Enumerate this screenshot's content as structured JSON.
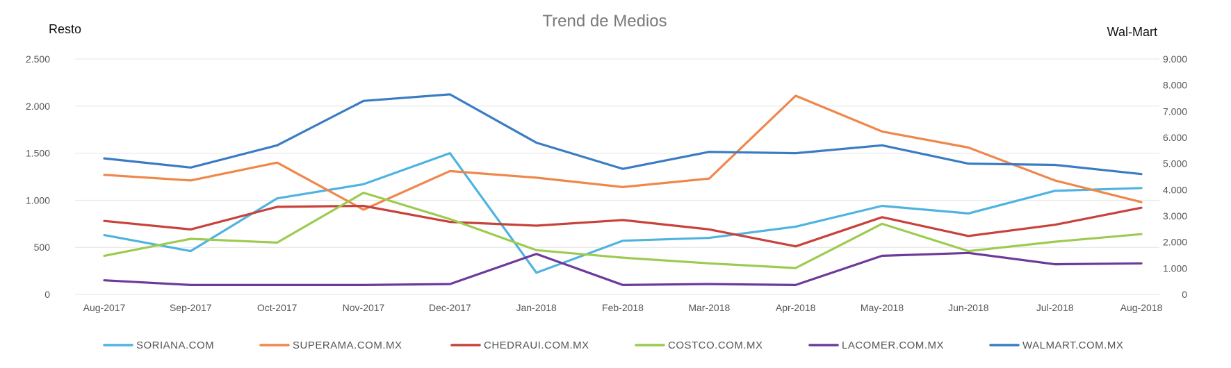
{
  "chart_data": {
    "type": "line",
    "title": "Trend de Medios",
    "y_left_label": "Resto",
    "y_right_label": "Wal-Mart",
    "categories": [
      "Aug-2017",
      "Sep-2017",
      "Oct-2017",
      "Nov-2017",
      "Dec-2017",
      "Jan-2018",
      "Feb-2018",
      "Mar-2018",
      "Apr-2018",
      "May-2018",
      "Jun-2018",
      "Jul-2018",
      "Aug-2018"
    ],
    "y_left": {
      "min": 0,
      "max": 2500,
      "ticks": [
        0,
        500,
        1000,
        1500,
        2000,
        2500
      ],
      "tick_labels": [
        "0",
        "500",
        "1.000",
        "1.500",
        "2.000",
        "2.500"
      ]
    },
    "y_right": {
      "min": 0,
      "max": 9000,
      "ticks": [
        0,
        1000,
        2000,
        3000,
        4000,
        5000,
        6000,
        7000,
        8000,
        9000
      ],
      "tick_labels": [
        "0",
        "1.000",
        "2.000",
        "3.000",
        "4.000",
        "5.000",
        "6.000",
        "7.000",
        "8.000",
        "9.000"
      ]
    },
    "grid": "horizontal",
    "legend_position": "bottom",
    "series": [
      {
        "name": "SORIANA.COM",
        "axis": "left",
        "color": "#4fb3e0",
        "values": [
          630,
          460,
          1020,
          1170,
          1500,
          230,
          570,
          600,
          720,
          940,
          860,
          1100,
          1130
        ]
      },
      {
        "name": "SUPERAMA.COM.MX",
        "axis": "left",
        "color": "#f0874a",
        "values": [
          1270,
          1210,
          1400,
          900,
          1310,
          1240,
          1140,
          1230,
          2110,
          1730,
          1560,
          1210,
          980
        ]
      },
      {
        "name": "CHEDRAUI.COM.MX",
        "axis": "left",
        "color": "#c8413a",
        "values": [
          780,
          690,
          930,
          940,
          770,
          730,
          790,
          690,
          510,
          820,
          620,
          740,
          920
        ]
      },
      {
        "name": "COSTCO.COM.MX",
        "axis": "left",
        "color": "#9ccb4f",
        "values": [
          410,
          590,
          550,
          1080,
          800,
          470,
          390,
          330,
          280,
          750,
          460,
          560,
          640
        ]
      },
      {
        "name": "LACOMER.COM.MX",
        "axis": "left",
        "color": "#6e3a9a",
        "values": [
          150,
          100,
          100,
          100,
          110,
          430,
          100,
          110,
          100,
          410,
          440,
          320,
          330
        ]
      },
      {
        "name": "WALMART.COM.MX",
        "axis": "right",
        "color": "#3a7cc4",
        "values": [
          5200,
          4850,
          5700,
          7400,
          7650,
          5800,
          4800,
          5450,
          5400,
          5700,
          5000,
          4950,
          4600
        ]
      }
    ]
  }
}
